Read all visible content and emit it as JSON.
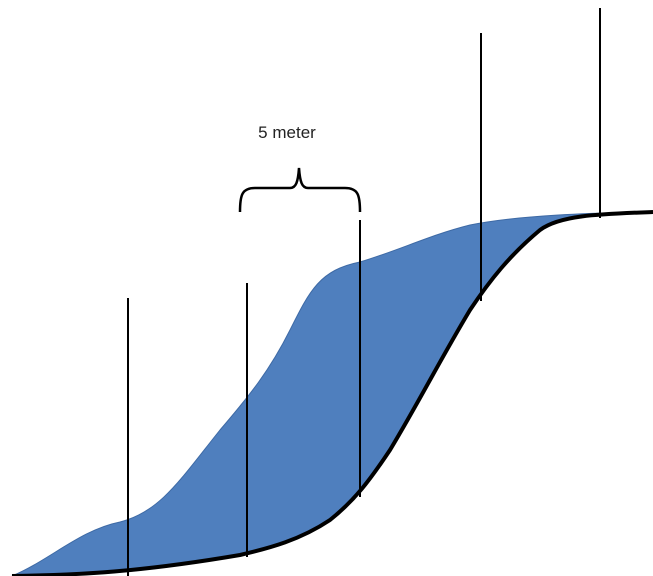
{
  "annotation": {
    "label": "5 meter"
  }
}
